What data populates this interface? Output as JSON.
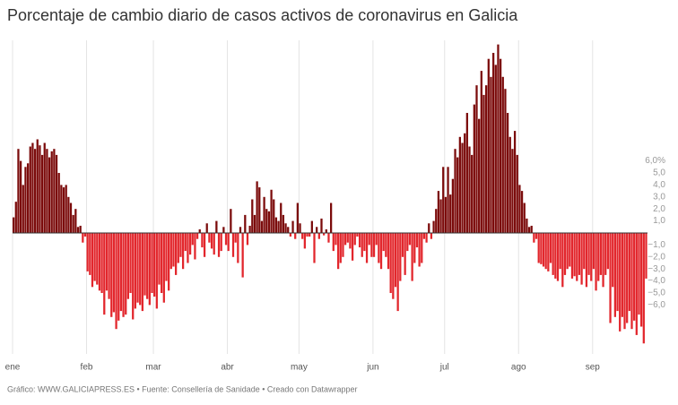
{
  "chart_data": {
    "type": "bar",
    "title": "Porcentaje de cambio diario de casos activos de coronavirus en Galicia",
    "source": "Gráfico: WWW.GALICIAPRESS.ES • Fuente: Consellería de Sanidade • Creado con Datawrapper",
    "positive_color": "#7b0b0b",
    "negative_color": "#e2262c",
    "grid": true,
    "xlim": [
      0,
      266
    ],
    "xticks": [
      {
        "value": 0,
        "label": "ene"
      },
      {
        "value": 31,
        "label": "feb"
      },
      {
        "value": 59,
        "label": "mar"
      },
      {
        "value": 90,
        "label": "abr"
      },
      {
        "value": 120,
        "label": "may"
      },
      {
        "value": 151,
        "label": "jun"
      },
      {
        "value": 181,
        "label": "jul"
      },
      {
        "value": 212,
        "label": "ago"
      },
      {
        "value": 243,
        "label": "sep"
      }
    ],
    "ylim": [
      -9.5,
      16
    ],
    "yticks": [
      {
        "value": 6,
        "label": "6,0%"
      },
      {
        "value": 5,
        "label": "5,0"
      },
      {
        "value": 4,
        "label": "4,0"
      },
      {
        "value": 3,
        "label": "3,0"
      },
      {
        "value": 2,
        "label": "2,0"
      },
      {
        "value": 1,
        "label": "1,0"
      },
      {
        "value": -1,
        "label": "−1,0"
      },
      {
        "value": -2,
        "label": "−2,0"
      },
      {
        "value": -3,
        "label": "−3,0"
      },
      {
        "value": -4,
        "label": "−4,0"
      },
      {
        "value": -5,
        "label": "−5,0"
      },
      {
        "value": -6,
        "label": "−6,0"
      }
    ],
    "values": [
      1.3,
      2.6,
      7.0,
      6.0,
      4.0,
      5.5,
      5.8,
      7.2,
      7.5,
      7.0,
      7.8,
      7.3,
      6.5,
      7.5,
      7.0,
      6.3,
      6.8,
      7.0,
      6.5,
      5.0,
      4.0,
      3.8,
      4.0,
      3.0,
      2.5,
      1.5,
      2.0,
      0.5,
      0.6,
      -0.8,
      -0.3,
      -3.2,
      -3.5,
      -4.5,
      -4.0,
      -4.3,
      -4.8,
      -5.0,
      -6.8,
      -4.8,
      -5.5,
      -7.0,
      -6.6,
      -8.0,
      -7.3,
      -6.5,
      -7.0,
      -6.8,
      -5.5,
      -5.0,
      -7.2,
      -6.3,
      -5.8,
      -6.0,
      -6.5,
      -5.2,
      -5.5,
      -6.0,
      -5.0,
      -5.3,
      -6.3,
      -4.3,
      -5.0,
      -5.8,
      -4.0,
      -4.8,
      -3.0,
      -2.8,
      -3.5,
      -2.5,
      -2.0,
      -3.0,
      -1.5,
      -2.5,
      -1.8,
      -1.0,
      -2.2,
      -0.5,
      0.3,
      -1.2,
      -2.0,
      0.8,
      -0.8,
      -1.3,
      -1.8,
      1.0,
      -2.0,
      -1.5,
      0.5,
      -1.0,
      -1.5,
      2.0,
      -2.0,
      -0.8,
      -2.5,
      0.5,
      -3.7,
      1.5,
      -1.0,
      0.6,
      2.8,
      1.5,
      4.3,
      3.8,
      1.0,
      3.0,
      2.0,
      1.8,
      3.6,
      2.8,
      1.3,
      1.0,
      2.5,
      1.5,
      0.8,
      0.5,
      -0.3,
      1.0,
      -0.5,
      2.5,
      0.8,
      -0.5,
      -1.3,
      -0.3,
      -0.3,
      1.0,
      -2.5,
      0.5,
      -0.5,
      1.2,
      -0.2,
      0.3,
      -0.8,
      2.5,
      -1.5,
      -1.0,
      -3.0,
      -2.5,
      -2.0,
      -1.0,
      -0.8,
      -1.3,
      -2.3,
      -1.0,
      -0.3,
      -1.2,
      -2.0,
      -1.5,
      -2.5,
      -1.0,
      -2.0,
      -2.0,
      -1.0,
      -2.5,
      -3.0,
      -1.5,
      -2.0,
      -3.0,
      -5.0,
      -5.5,
      -4.5,
      -6.5,
      -4.0,
      -2.0,
      -3.5,
      -1.5,
      -1.0,
      -4.0,
      -2.5,
      -1.2,
      -2.8,
      -2.5,
      -0.5,
      -0.8,
      0.8,
      -0.5,
      1.0,
      2.0,
      3.5,
      2.8,
      5.5,
      3.0,
      5.5,
      3.2,
      4.5,
      7.0,
      6.3,
      8.0,
      7.5,
      8.3,
      10.0,
      7.2,
      6.5,
      10.7,
      12.3,
      9.5,
      13.5,
      11.5,
      12.3,
      14.5,
      13.0,
      15.0,
      14.0,
      15.7,
      14.5,
      13.0,
      12.0,
      10.0,
      8.0,
      7.0,
      8.5,
      6.5,
      4.0,
      3.5,
      2.5,
      1.2,
      0.5,
      0.6,
      -0.8,
      -0.5,
      -2.5,
      -2.6,
      -2.8,
      -3.0,
      -3.2,
      -2.5,
      -3.5,
      -3.8,
      -4.0,
      -3.0,
      -4.5,
      -3.5,
      -3.0,
      -2.8,
      -3.8,
      -3.6,
      -4.0,
      -3.5,
      -4.3,
      -3.0,
      -4.5,
      -3.5,
      -4.0,
      -3.0,
      -4.8,
      -4.0,
      -3.5,
      -4.5,
      -3.5,
      -3.0,
      -7.5,
      -4.5,
      -7.0,
      -6.5,
      -8.2,
      -7.0,
      -8.0,
      -7.5,
      -6.5,
      -8.0,
      -7.3,
      -8.5,
      -6.8,
      -7.8,
      -9.2,
      -3.8
    ]
  }
}
